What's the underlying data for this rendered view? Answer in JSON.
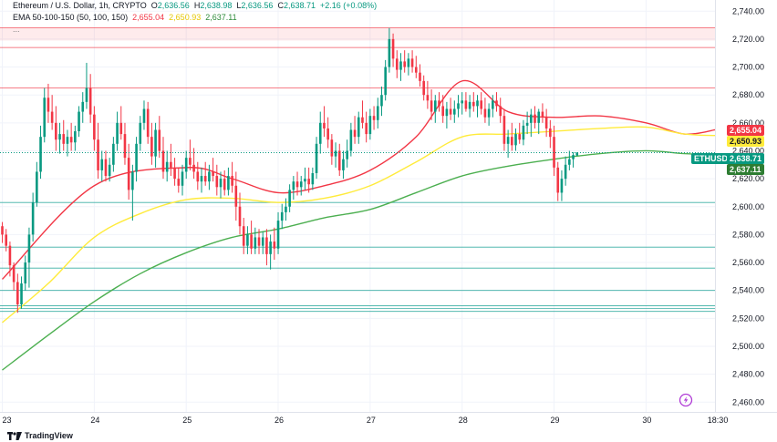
{
  "legend": {
    "symbol": "Ethereum / U.S. Dollar, 1h, CRYPTO",
    "open_label": "O",
    "open": "2,636.56",
    "high_label": "H",
    "high": "2,638.98",
    "low_label": "L",
    "low": "2,636.56",
    "close_label": "C",
    "close": "2,638.71",
    "change": "+2.16 (+0.08%)",
    "ema_label": "EMA 50-100-150 (50, 100, 150)",
    "ema1": "2,655.04",
    "ema2": "2,650.93",
    "ema3": "2,637.11",
    "more": "..."
  },
  "badges": {
    "ema1": "2,655.04",
    "ema2": "2,650.93",
    "symbol": "ETHUSD",
    "price": "2,638.71",
    "ema3": "2,637.11"
  },
  "footer": {
    "brand": "TradingView"
  },
  "colors": {
    "up": "#089981",
    "down": "#f23645",
    "ema50": "#f23645",
    "ema100": "#ffeb3b",
    "ema150": "#4caf50",
    "resistance": "#f23645",
    "support": "#26a69a"
  },
  "chart_data": {
    "type": "candlestick",
    "symbol": "ETHUSD",
    "timeframe": "1h",
    "y_ticks": [
      2460,
      2480,
      2500,
      2520,
      2540,
      2560,
      2580,
      2600,
      2620,
      2640,
      2660,
      2680,
      2700,
      2720,
      2740
    ],
    "y_tick_labels": [
      "2,460.00",
      "2,480.00",
      "2,500.00",
      "2,520.00",
      "2,540.00",
      "2,560.00",
      "2,580.00",
      "2,600.00",
      "2,620.00",
      "2,640.00",
      "2,660.00",
      "2,680.00",
      "2,700.00",
      "2,720.00",
      "2,740.00"
    ],
    "ylim": [
      2453,
      2748
    ],
    "x_labels": [
      "23",
      "24",
      "25",
      "26",
      "27",
      "28",
      "29",
      "30",
      "18:30"
    ],
    "x_label_positions": [
      0,
      24,
      48,
      72,
      96,
      120,
      144,
      168,
      185
    ],
    "xlim": [
      -0.6,
      186
    ],
    "resistance_levels": [
      2728,
      2714,
      2685
    ],
    "resistance_band": [
      2719,
      2728
    ],
    "support_levels": [
      2603,
      2571,
      2556,
      2540,
      2529,
      2527,
      2525
    ],
    "candles": [
      [
        2586,
        2589,
        2574,
        2580
      ],
      [
        2580,
        2584,
        2568,
        2572
      ],
      [
        2572,
        2575,
        2550,
        2558
      ],
      [
        2558,
        2560,
        2540,
        2546
      ],
      [
        2546,
        2552,
        2524,
        2530
      ],
      [
        2530,
        2550,
        2527,
        2545
      ],
      [
        2545,
        2565,
        2540,
        2560
      ],
      [
        2560,
        2585,
        2542,
        2580
      ],
      [
        2580,
        2610,
        2575,
        2603
      ],
      [
        2603,
        2632,
        2600,
        2625
      ],
      [
        2625,
        2658,
        2620,
        2650
      ],
      [
        2650,
        2685,
        2646,
        2678
      ],
      [
        2678,
        2688,
        2660,
        2668
      ],
      [
        2668,
        2680,
        2655,
        2660
      ],
      [
        2660,
        2672,
        2640,
        2648
      ],
      [
        2648,
        2660,
        2638,
        2652
      ],
      [
        2652,
        2662,
        2640,
        2645
      ],
      [
        2645,
        2655,
        2636,
        2650
      ],
      [
        2650,
        2660,
        2640,
        2646
      ],
      [
        2646,
        2658,
        2640,
        2654
      ],
      [
        2654,
        2672,
        2650,
        2668
      ],
      [
        2668,
        2682,
        2660,
        2675
      ],
      [
        2675,
        2703,
        2670,
        2685
      ],
      [
        2685,
        2695,
        2660,
        2666
      ],
      [
        2666,
        2672,
        2640,
        2648
      ],
      [
        2648,
        2660,
        2620,
        2626
      ],
      [
        2626,
        2640,
        2618,
        2634
      ],
      [
        2634,
        2640,
        2618,
        2622
      ],
      [
        2622,
        2635,
        2618,
        2630
      ],
      [
        2630,
        2650,
        2625,
        2645
      ],
      [
        2645,
        2668,
        2640,
        2660
      ],
      [
        2660,
        2672,
        2648,
        2652
      ],
      [
        2652,
        2660,
        2630,
        2635
      ],
      [
        2635,
        2645,
        2605,
        2612
      ],
      [
        2612,
        2630,
        2590,
        2625
      ],
      [
        2625,
        2650,
        2618,
        2645
      ],
      [
        2645,
        2665,
        2640,
        2660
      ],
      [
        2660,
        2676,
        2655,
        2670
      ],
      [
        2670,
        2675,
        2645,
        2650
      ],
      [
        2650,
        2660,
        2630,
        2636
      ],
      [
        2636,
        2660,
        2628,
        2655
      ],
      [
        2655,
        2665,
        2635,
        2640
      ],
      [
        2640,
        2650,
        2620,
        2625
      ],
      [
        2625,
        2640,
        2618,
        2632
      ],
      [
        2632,
        2645,
        2622,
        2628
      ],
      [
        2628,
        2635,
        2615,
        2620
      ],
      [
        2620,
        2628,
        2610,
        2615
      ],
      [
        2615,
        2630,
        2608,
        2625
      ],
      [
        2625,
        2640,
        2620,
        2635
      ],
      [
        2635,
        2648,
        2626,
        2630
      ],
      [
        2630,
        2642,
        2620,
        2625
      ],
      [
        2625,
        2632,
        2612,
        2618
      ],
      [
        2618,
        2628,
        2610,
        2622
      ],
      [
        2622,
        2632,
        2615,
        2618
      ],
      [
        2618,
        2630,
        2612,
        2625
      ],
      [
        2625,
        2635,
        2618,
        2622
      ],
      [
        2622,
        2630,
        2608,
        2614
      ],
      [
        2614,
        2625,
        2606,
        2620
      ],
      [
        2620,
        2626,
        2608,
        2612
      ],
      [
        2612,
        2628,
        2608,
        2622
      ],
      [
        2622,
        2632,
        2610,
        2615
      ],
      [
        2615,
        2625,
        2590,
        2600
      ],
      [
        2600,
        2610,
        2580,
        2586
      ],
      [
        2586,
        2592,
        2566,
        2572
      ],
      [
        2572,
        2586,
        2566,
        2580
      ],
      [
        2580,
        2590,
        2566,
        2570
      ],
      [
        2570,
        2585,
        2566,
        2578
      ],
      [
        2578,
        2584,
        2566,
        2572
      ],
      [
        2572,
        2582,
        2566,
        2578
      ],
      [
        2578,
        2584,
        2558,
        2566
      ],
      [
        2566,
        2580,
        2555,
        2575
      ],
      [
        2575,
        2585,
        2562,
        2570
      ],
      [
        2570,
        2596,
        2566,
        2590
      ],
      [
        2590,
        2602,
        2584,
        2596
      ],
      [
        2596,
        2606,
        2590,
        2600
      ],
      [
        2600,
        2616,
        2596,
        2612
      ],
      [
        2612,
        2622,
        2605,
        2618
      ],
      [
        2618,
        2625,
        2608,
        2614
      ],
      [
        2614,
        2622,
        2608,
        2618
      ],
      [
        2618,
        2628,
        2612,
        2620
      ],
      [
        2620,
        2628,
        2610,
        2616
      ],
      [
        2616,
        2628,
        2612,
        2624
      ],
      [
        2624,
        2650,
        2620,
        2645
      ],
      [
        2645,
        2668,
        2638,
        2660
      ],
      [
        2660,
        2672,
        2650,
        2656
      ],
      [
        2656,
        2664,
        2642,
        2648
      ],
      [
        2648,
        2652,
        2630,
        2636
      ],
      [
        2636,
        2646,
        2628,
        2640
      ],
      [
        2640,
        2645,
        2622,
        2626
      ],
      [
        2626,
        2640,
        2620,
        2634
      ],
      [
        2634,
        2648,
        2628,
        2640
      ],
      [
        2640,
        2660,
        2636,
        2655
      ],
      [
        2655,
        2665,
        2645,
        2650
      ],
      [
        2650,
        2668,
        2645,
        2664
      ],
      [
        2664,
        2676,
        2656,
        2660
      ],
      [
        2660,
        2668,
        2646,
        2652
      ],
      [
        2652,
        2670,
        2648,
        2665
      ],
      [
        2665,
        2672,
        2655,
        2662
      ],
      [
        2662,
        2678,
        2656,
        2672
      ],
      [
        2672,
        2686,
        2665,
        2680
      ],
      [
        2680,
        2705,
        2676,
        2700
      ],
      [
        2700,
        2728,
        2696,
        2720
      ],
      [
        2720,
        2724,
        2700,
        2706
      ],
      [
        2706,
        2712,
        2692,
        2698
      ],
      [
        2698,
        2710,
        2690,
        2704
      ],
      [
        2704,
        2712,
        2696,
        2700
      ],
      [
        2700,
        2710,
        2694,
        2706
      ],
      [
        2706,
        2712,
        2696,
        2700
      ],
      [
        2700,
        2708,
        2692,
        2696
      ],
      [
        2696,
        2702,
        2686,
        2690
      ],
      [
        2690,
        2694,
        2676,
        2680
      ],
      [
        2680,
        2690,
        2670,
        2676
      ],
      [
        2676,
        2684,
        2662,
        2668
      ],
      [
        2668,
        2680,
        2660,
        2676
      ],
      [
        2676,
        2682,
        2668,
        2672
      ],
      [
        2672,
        2680,
        2660,
        2665
      ],
      [
        2665,
        2675,
        2656,
        2670
      ],
      [
        2670,
        2678,
        2662,
        2666
      ],
      [
        2666,
        2676,
        2660,
        2670
      ],
      [
        2670,
        2680,
        2664,
        2674
      ],
      [
        2674,
        2682,
        2666,
        2676
      ],
      [
        2676,
        2682,
        2668,
        2670
      ],
      [
        2670,
        2680,
        2664,
        2675
      ],
      [
        2675,
        2682,
        2668,
        2672
      ],
      [
        2672,
        2680,
        2664,
        2676
      ],
      [
        2676,
        2682,
        2666,
        2670
      ],
      [
        2670,
        2678,
        2660,
        2664
      ],
      [
        2664,
        2674,
        2658,
        2670
      ],
      [
        2670,
        2680,
        2664,
        2676
      ],
      [
        2676,
        2682,
        2668,
        2672
      ],
      [
        2672,
        2678,
        2660,
        2665
      ],
      [
        2665,
        2670,
        2640,
        2645
      ],
      [
        2645,
        2655,
        2635,
        2650
      ],
      [
        2650,
        2660,
        2640,
        2644
      ],
      [
        2644,
        2656,
        2640,
        2652
      ],
      [
        2652,
        2660,
        2645,
        2648
      ],
      [
        2648,
        2662,
        2644,
        2658
      ],
      [
        2658,
        2668,
        2652,
        2660
      ],
      [
        2660,
        2670,
        2650,
        2666
      ],
      [
        2666,
        2672,
        2656,
        2660
      ],
      [
        2660,
        2670,
        2652,
        2668
      ],
      [
        2668,
        2674,
        2660,
        2664
      ],
      [
        2664,
        2670,
        2650,
        2656
      ],
      [
        2656,
        2662,
        2642,
        2650
      ],
      [
        2650,
        2658,
        2622,
        2628
      ],
      [
        2628,
        2632,
        2604,
        2610
      ],
      [
        2610,
        2626,
        2604,
        2620
      ],
      [
        2620,
        2636,
        2615,
        2630
      ],
      [
        2630,
        2640,
        2626,
        2634
      ],
      [
        2634,
        2639,
        2628,
        2637
      ],
      [
        2636.56,
        2638.98,
        2636.56,
        2638.71
      ]
    ],
    "series": [
      {
        "name": "EMA 50",
        "color": "#f23645",
        "values": [
          [
            0,
            2548
          ],
          [
            24,
            2615
          ],
          [
            48,
            2628
          ],
          [
            60,
            2620
          ],
          [
            72,
            2610
          ],
          [
            84,
            2615
          ],
          [
            96,
            2626
          ],
          [
            108,
            2650
          ],
          [
            120,
            2690
          ],
          [
            132,
            2668
          ],
          [
            144,
            2664
          ],
          [
            156,
            2665
          ],
          [
            168,
            2660
          ],
          [
            178,
            2652
          ],
          [
            186,
            2655.04
          ]
        ]
      },
      {
        "name": "EMA 100",
        "color": "#ffeb3b",
        "values": [
          [
            0,
            2517
          ],
          [
            12,
            2545
          ],
          [
            24,
            2578
          ],
          [
            36,
            2595
          ],
          [
            48,
            2605
          ],
          [
            60,
            2606
          ],
          [
            72,
            2603
          ],
          [
            84,
            2606
          ],
          [
            96,
            2615
          ],
          [
            108,
            2632
          ],
          [
            120,
            2650
          ],
          [
            132,
            2652
          ],
          [
            144,
            2654
          ],
          [
            156,
            2656
          ],
          [
            168,
            2657
          ],
          [
            178,
            2652
          ],
          [
            186,
            2650.93
          ]
        ]
      },
      {
        "name": "EMA 150",
        "color": "#4caf50",
        "values": [
          [
            0,
            2483
          ],
          [
            12,
            2508
          ],
          [
            24,
            2532
          ],
          [
            36,
            2552
          ],
          [
            48,
            2567
          ],
          [
            60,
            2578
          ],
          [
            72,
            2584
          ],
          [
            84,
            2592
          ],
          [
            96,
            2598
          ],
          [
            108,
            2610
          ],
          [
            120,
            2622
          ],
          [
            132,
            2629
          ],
          [
            144,
            2634
          ],
          [
            156,
            2638
          ],
          [
            168,
            2640
          ],
          [
            178,
            2638
          ],
          [
            186,
            2637.11
          ]
        ]
      }
    ]
  }
}
